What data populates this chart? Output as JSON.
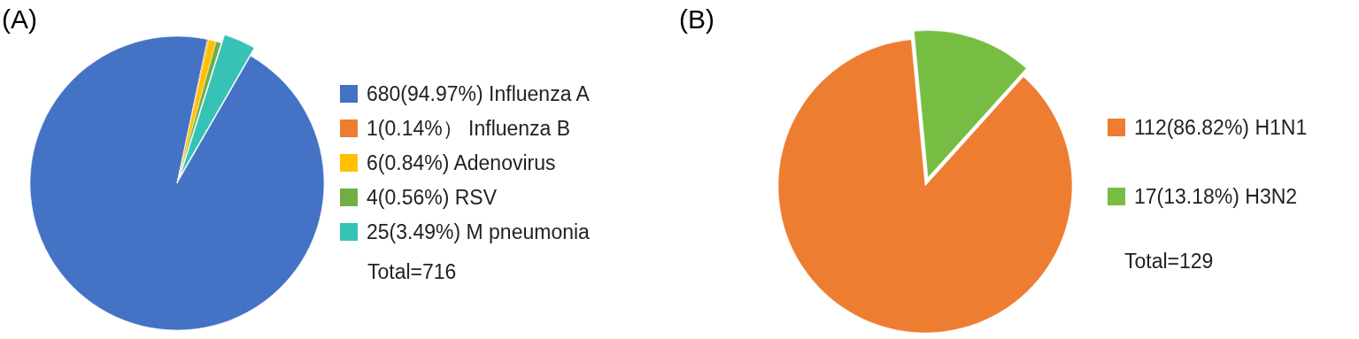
{
  "chart_data": [
    {
      "type": "pie",
      "title": "(A)",
      "categories": [
        "Influenza A",
        "Influenza B",
        "Adenovirus",
        "RSV",
        "M pneumonia"
      ],
      "values": [
        680,
        1,
        6,
        4,
        25
      ],
      "value_labels": [
        "680(94.97%)",
        "1(0.14%）",
        "6(0.84%)",
        "4(0.56%)",
        "25(3.49%)"
      ],
      "colors": [
        "#4472c4",
        "#ed7d31",
        "#ffc000",
        "#70ad47",
        "#36c2b4"
      ],
      "legend": "right",
      "annotations": [
        "Total=716"
      ]
    },
    {
      "type": "pie",
      "title": "(B)",
      "categories": [
        "H1N1",
        "H3N2"
      ],
      "values": [
        112,
        17
      ],
      "value_labels": [
        "112(86.82%)",
        "17(13.18%)"
      ],
      "colors": [
        "#ed7d31",
        "#77bd43"
      ],
      "legend": "right",
      "annotations": [
        "Total=129"
      ]
    }
  ]
}
